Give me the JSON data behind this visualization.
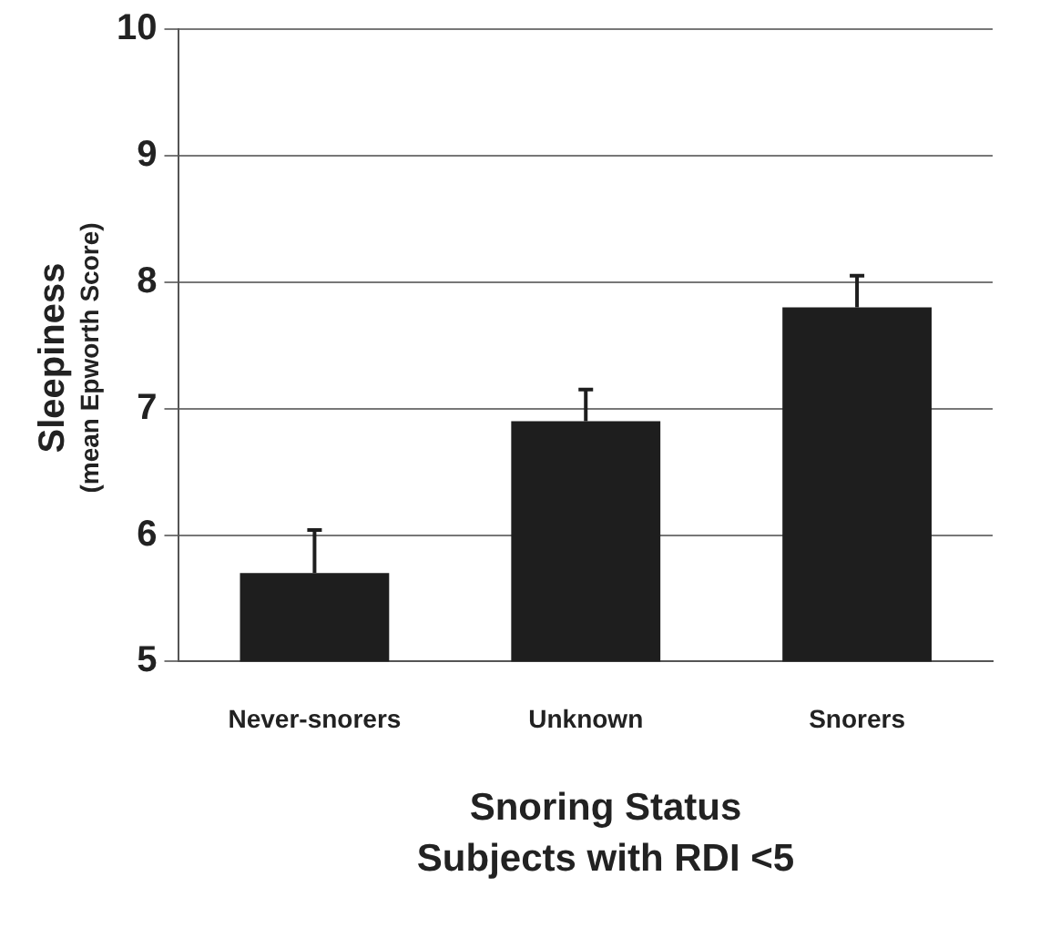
{
  "chart_data": {
    "type": "bar",
    "xlabel": "Snoring Status\nSubjects with RDI <5",
    "ylabel": "Sleepiness\n(mean Epworth Score)",
    "categories": [
      "Never-snorers",
      "Unknown",
      "Snorers"
    ],
    "values": [
      5.7,
      6.9,
      7.8
    ],
    "errors": [
      [
        5.7,
        6.04
      ],
      [
        6.9,
        7.15
      ],
      [
        7.8,
        8.05
      ]
    ],
    "color": "#1e1e1e",
    "ylim": [
      5,
      10
    ],
    "yticks": [
      5,
      6,
      7,
      8,
      9,
      10
    ],
    "grid": "y",
    "legend": false
  }
}
